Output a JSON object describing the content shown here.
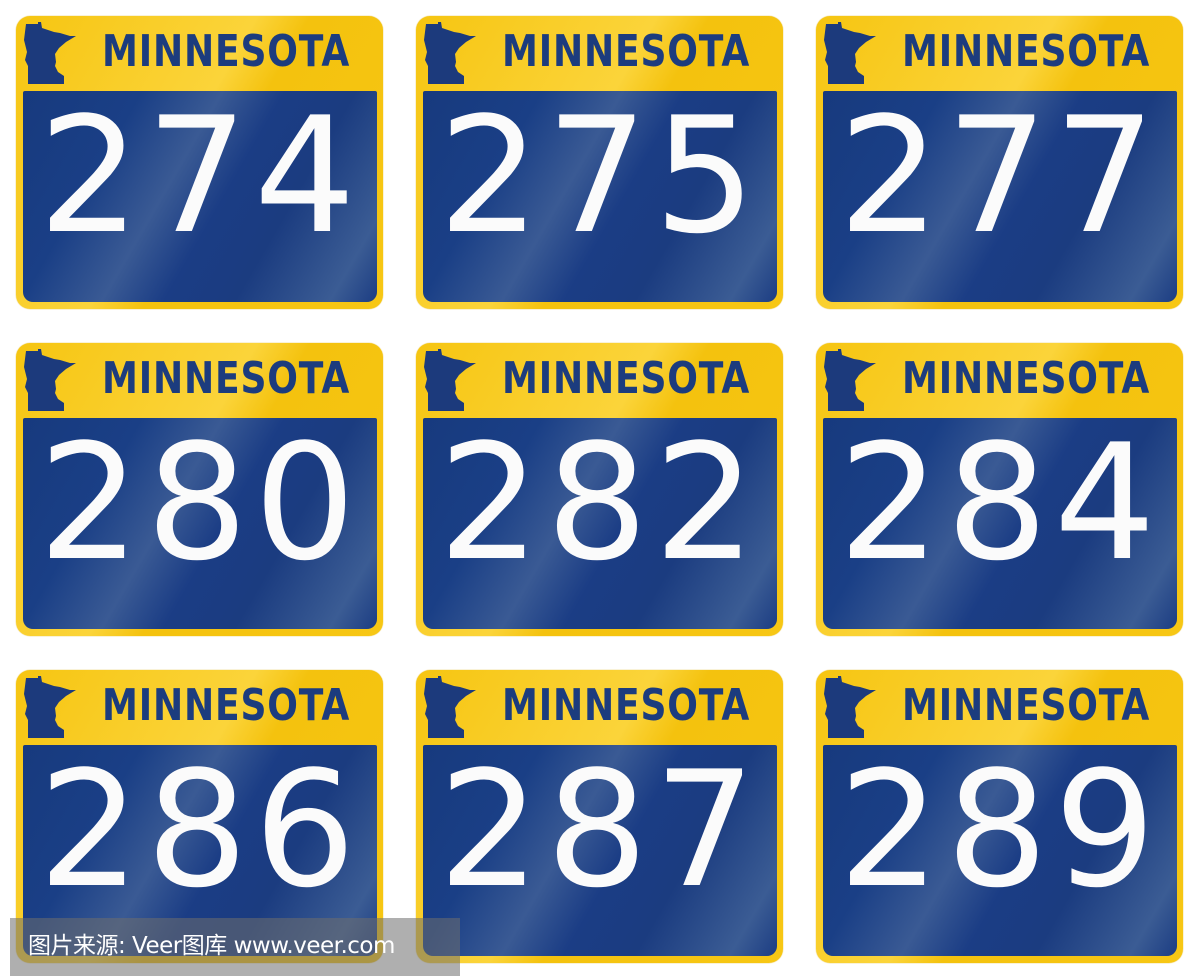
{
  "colors": {
    "yellow": "#f6c511",
    "blue": "#1a3f86",
    "text_blue": "#1c3c7e",
    "number": "#fbfbfb"
  },
  "state_icon": "minnesota-silhouette-icon",
  "signs": [
    {
      "state": "MINNESOTA",
      "number": "274"
    },
    {
      "state": "MINNESOTA",
      "number": "275"
    },
    {
      "state": "MINNESOTA",
      "number": "277"
    },
    {
      "state": "MINNESOTA",
      "number": "280"
    },
    {
      "state": "MINNESOTA",
      "number": "282"
    },
    {
      "state": "MINNESOTA",
      "number": "284"
    },
    {
      "state": "MINNESOTA",
      "number": "286"
    },
    {
      "state": "MINNESOTA",
      "number": "287"
    },
    {
      "state": "MINNESOTA",
      "number": "289"
    }
  ],
  "watermark": "图片来源: Veer图库 www.veer.com"
}
